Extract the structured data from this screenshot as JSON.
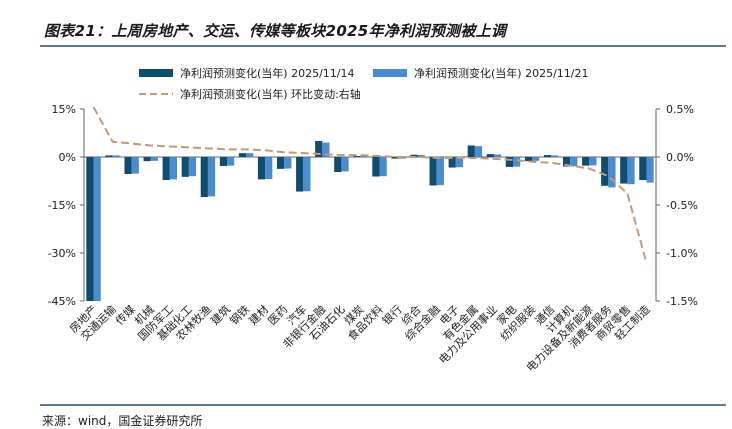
{
  "title": "图表21：上周房地产、交运、传媒等板块2025年净利润预测被上调",
  "source": "来源：wind，国金证券研究所",
  "colors": {
    "series1": "#0f4c6e",
    "series2": "#4a8ccd",
    "line": "#c29a7a",
    "axis": "#666666",
    "rule": "#5b7f96"
  },
  "chart_data": {
    "type": "bar",
    "title": "上周房地产、交运、传媒等板块2025年净利润预测被上调",
    "categories": [
      "房地产",
      "交通运输",
      "传媒",
      "机械",
      "国防军工",
      "基础化工",
      "农林牧渔",
      "建筑",
      "钢铁",
      "建材",
      "医药",
      "汽车",
      "非银行金融",
      "石油石化",
      "煤炭",
      "食品饮料",
      "银行",
      "综合",
      "综合金融",
      "电子",
      "有色金属",
      "电力及公用事业",
      "家电",
      "纺织服装",
      "通信",
      "计算机",
      "电力设备及新能源",
      "消费者服务",
      "商贸零售",
      "轻工制造"
    ],
    "series": [
      {
        "name": "净利润预测变化(当年) 2025/11/14",
        "axis": "left",
        "values": [
          -45.0,
          0.5,
          -5.3,
          -1.3,
          -7.2,
          -6.2,
          -12.5,
          -2.8,
          1.2,
          -7.0,
          -3.7,
          -10.8,
          5.0,
          -4.7,
          0.3,
          -6.1,
          -0.5,
          0.7,
          -8.9,
          -3.3,
          3.6,
          0.9,
          -3.1,
          -1.3,
          0.6,
          -3.0,
          -2.7,
          -9.0,
          -8.3,
          -7.2
        ]
      },
      {
        "name": "净利润预测变化(当年) 2025/11/21",
        "axis": "left",
        "values": [
          -45.0,
          0.5,
          -5.2,
          -1.2,
          -7.0,
          -6.0,
          -12.3,
          -2.7,
          1.2,
          -6.9,
          -3.6,
          -10.7,
          4.5,
          -4.5,
          0.3,
          -6.0,
          -0.5,
          0.6,
          -8.8,
          -3.2,
          3.4,
          0.8,
          -3.0,
          -1.2,
          0.5,
          -2.9,
          -2.6,
          -9.5,
          -8.5,
          -8.0
        ]
      },
      {
        "name": "净利润预测变化(当年) 环比变动:右轴",
        "axis": "right",
        "type": "line",
        "values": [
          0.52,
          0.16,
          0.14,
          0.12,
          0.11,
          0.1,
          0.09,
          0.08,
          0.08,
          0.07,
          0.05,
          0.04,
          0.03,
          0.02,
          0.02,
          0.01,
          0.0,
          0.0,
          -0.01,
          -0.01,
          -0.01,
          -0.02,
          -0.03,
          -0.05,
          -0.06,
          -0.09,
          -0.12,
          -0.2,
          -0.38,
          -1.1
        ]
      }
    ],
    "legend_labels": [
      "净利润预测变化(当年) 2025/11/14",
      "净利润预测变化(当年) 2025/11/21",
      "净利润预测变化(当年) 环比变动:右轴"
    ],
    "ylim_left": [
      -45,
      15
    ],
    "yticks_left": [
      15,
      0,
      -15,
      -30,
      -45
    ],
    "ytick_labels_left": [
      "15%",
      "0%",
      "-15%",
      "-30%",
      "-45%"
    ],
    "ylim_right": [
      -1.5,
      0.5
    ],
    "yticks_right": [
      0.5,
      0,
      -0.5,
      -1.0,
      -1.5
    ],
    "ytick_labels_right": [
      "0.5%",
      "0.0%",
      "-0.5%",
      "-1.0%",
      "-1.5%"
    ],
    "legend_position": "top",
    "grid": false
  }
}
